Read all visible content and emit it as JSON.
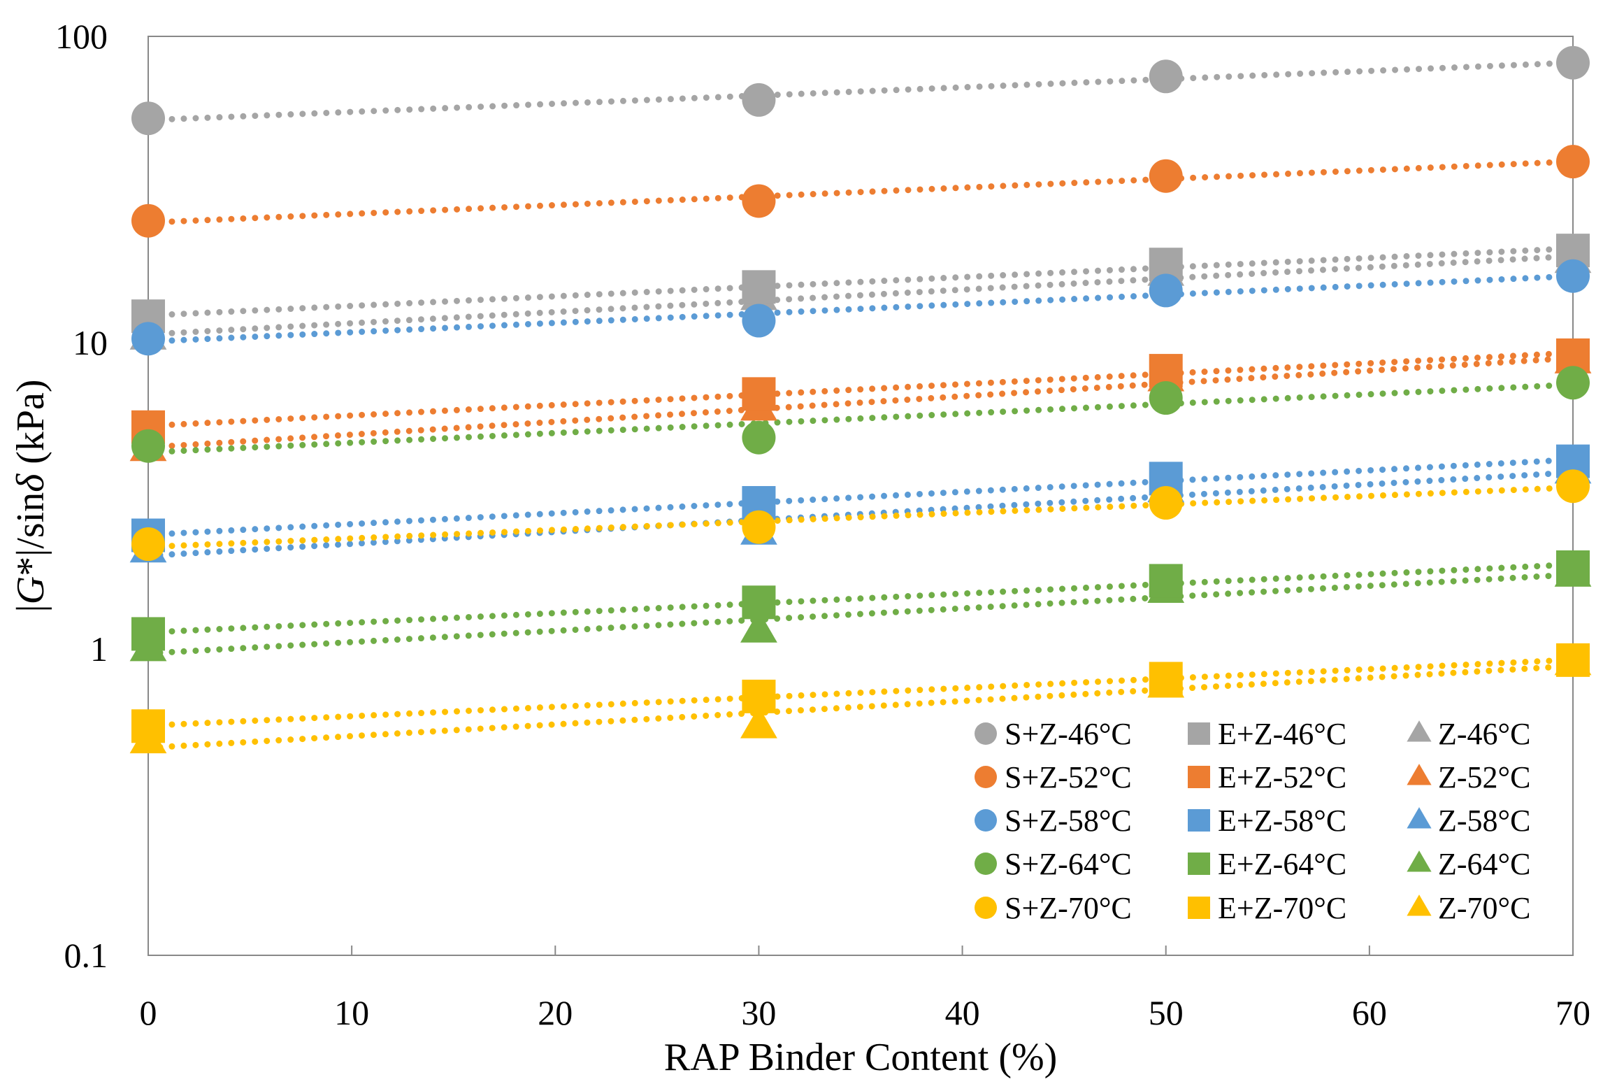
{
  "chart_data": {
    "type": "scatter",
    "title": "",
    "xlabel": "RAP Binder Content (%)",
    "ylabel_parts": [
      "|",
      "G",
      "*|/sin",
      "δ",
      " (kPa)"
    ],
    "x_scale": "linear",
    "y_scale": "log",
    "xlim": [
      0,
      70
    ],
    "ylim": [
      0.1,
      100
    ],
    "x_ticks": [
      0,
      10,
      20,
      30,
      40,
      50,
      60,
      70
    ],
    "y_ticks": [
      0.1,
      1,
      10,
      100
    ],
    "x_tick_labels": [
      "0",
      "10",
      "20",
      "30",
      "40",
      "50",
      "60",
      "70"
    ],
    "y_tick_labels": [
      "0.1",
      "1",
      "10",
      "100"
    ],
    "grid": false,
    "legend_position": "bottom-right",
    "x": [
      0,
      30,
      50,
      70
    ],
    "colors": {
      "46": "#A5A5A5",
      "52": "#ED7D31",
      "58": "#5B9BD5",
      "64": "#70AD47",
      "70": "#FFC000"
    },
    "series": [
      {
        "name": "S+Z-46°C",
        "marker": "circle",
        "color_key": "46",
        "values": [
          54,
          62,
          74,
          82
        ]
      },
      {
        "name": "E+Z-46°C",
        "marker": "square",
        "color_key": "46",
        "values": [
          12.2,
          15.2,
          18.0,
          20.0
        ]
      },
      {
        "name": "Z-46°C",
        "marker": "triangle",
        "color_key": "46",
        "values": [
          10.4,
          14.0,
          16.8,
          18.5
        ]
      },
      {
        "name": "S+Z-52°C",
        "marker": "circle",
        "color_key": "52",
        "values": [
          25,
          29,
          35,
          39
        ]
      },
      {
        "name": "E+Z-52°C",
        "marker": "square",
        "color_key": "52",
        "values": [
          5.3,
          6.8,
          8.1,
          9.1
        ]
      },
      {
        "name": "Z-52°C",
        "marker": "triangle",
        "color_key": "52",
        "values": [
          4.5,
          6.1,
          7.6,
          8.7
        ]
      },
      {
        "name": "S+Z-58°C",
        "marker": "circle",
        "color_key": "58",
        "values": [
          10.3,
          11.8,
          14.8,
          16.5
        ]
      },
      {
        "name": "E+Z-58°C",
        "marker": "square",
        "color_key": "58",
        "values": [
          2.35,
          3.0,
          3.6,
          4.1
        ]
      },
      {
        "name": "Z-58°C",
        "marker": "triangle",
        "color_key": "58",
        "values": [
          2.1,
          2.4,
          3.3,
          3.8
        ]
      },
      {
        "name": "S+Z-64°C",
        "marker": "circle",
        "color_key": "64",
        "values": [
          4.6,
          4.9,
          6.6,
          7.4
        ]
      },
      {
        "name": "E+Z-64°C",
        "marker": "square",
        "color_key": "64",
        "values": [
          1.12,
          1.42,
          1.67,
          1.85
        ]
      },
      {
        "name": "Z-64°C",
        "marker": "triangle",
        "color_key": "64",
        "values": [
          1.0,
          1.15,
          1.55,
          1.75
        ]
      },
      {
        "name": "S+Z-70°C",
        "marker": "circle",
        "color_key": "70",
        "values": [
          2.2,
          2.5,
          3.0,
          3.4
        ]
      },
      {
        "name": "E+Z-70°C",
        "marker": "square",
        "color_key": "70",
        "values": [
          0.56,
          0.7,
          0.8,
          0.92
        ]
      },
      {
        "name": "Z-70°C",
        "marker": "triangle",
        "color_key": "70",
        "values": [
          0.5,
          0.56,
          0.76,
          0.9
        ]
      }
    ]
  }
}
